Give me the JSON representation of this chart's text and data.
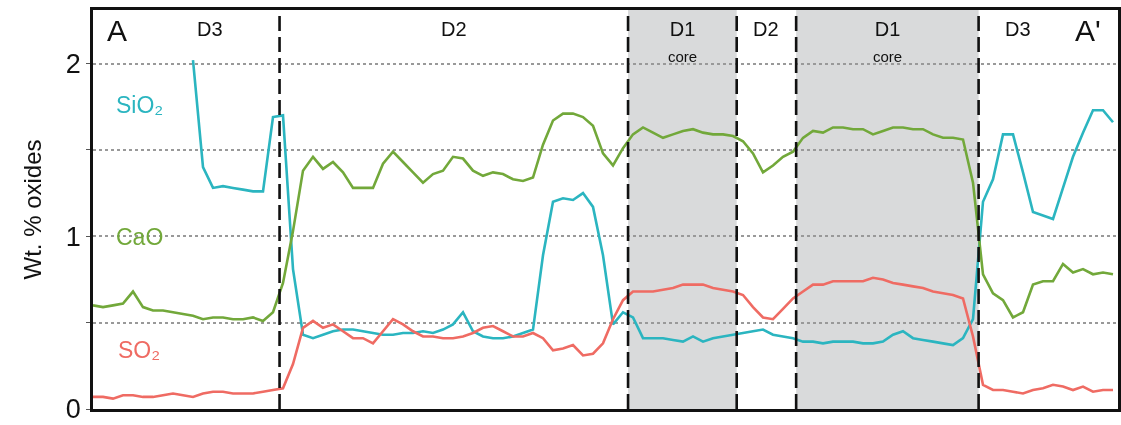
{
  "chart_data": {
    "type": "line",
    "ylabel": "Wt. % oxides",
    "ylim": [
      0,
      2.31
    ],
    "yticks": [
      0,
      {
        "value": 0.5,
        "label": null
      },
      1,
      {
        "value": 1.5,
        "label": null
      },
      2
    ],
    "grid": "y",
    "legend": false,
    "marker": "none",
    "line_style": "solid",
    "tick_labels": "y",
    "categories": [
      null,
      null,
      null,
      null,
      null,
      null,
      null,
      null,
      null,
      null,
      null,
      null,
      null,
      null,
      null,
      null,
      null,
      null,
      null,
      null,
      null,
      null,
      null,
      null,
      null,
      null,
      null,
      null,
      null,
      null,
      null,
      null,
      null,
      null,
      null,
      null,
      null,
      null,
      null,
      null,
      null,
      null,
      null,
      null,
      null,
      null,
      null,
      null,
      null,
      null,
      null,
      null,
      null,
      null,
      null,
      null,
      null,
      null,
      null,
      null,
      null,
      null,
      null,
      null,
      null,
      null,
      null,
      null,
      null,
      null,
      null,
      null,
      null,
      null,
      null,
      null,
      null,
      null,
      null,
      null,
      null,
      null,
      null,
      null,
      null,
      null,
      null,
      null,
      null,
      null,
      null,
      null,
      null,
      null,
      null,
      null,
      null,
      null,
      null,
      null,
      null,
      null,
      null
    ],
    "series": [
      {
        "name": "SiO₂",
        "color": "#2bb5c0",
        "values": [
          null,
          null,
          null,
          null,
          null,
          null,
          null,
          null,
          null,
          null,
          2.02,
          1.4,
          1.28,
          1.29,
          1.28,
          1.27,
          1.26,
          1.26,
          1.69,
          1.7,
          0.81,
          0.43,
          0.41,
          0.43,
          0.45,
          0.46,
          0.46,
          0.45,
          0.44,
          0.43,
          0.43,
          0.44,
          0.44,
          0.45,
          0.44,
          0.46,
          0.49,
          0.56,
          0.45,
          0.42,
          0.41,
          0.41,
          0.42,
          0.44,
          0.46,
          0.89,
          1.2,
          1.22,
          1.21,
          1.25,
          1.17,
          0.89,
          0.49,
          0.56,
          0.53,
          0.41,
          0.41,
          0.41,
          0.4,
          0.39,
          0.42,
          0.39,
          0.41,
          0.42,
          0.43,
          0.44,
          0.45,
          0.46,
          0.43,
          0.42,
          0.41,
          0.39,
          0.39,
          0.38,
          0.39,
          0.39,
          0.39,
          0.38,
          0.38,
          0.39,
          0.43,
          0.45,
          0.41,
          0.4,
          0.39,
          0.38,
          0.37,
          0.41,
          0.52,
          1.2,
          1.33,
          1.59,
          1.59,
          1.37,
          1.14,
          1.12,
          1.1,
          1.28,
          1.46,
          1.6,
          1.73,
          1.73,
          1.66
        ]
      },
      {
        "name": "CaO",
        "color": "#72a83a",
        "values": [
          0.6,
          0.59,
          0.6,
          0.61,
          0.68,
          0.59,
          0.57,
          0.57,
          0.56,
          0.55,
          0.54,
          0.52,
          0.53,
          0.53,
          0.52,
          0.52,
          0.53,
          0.51,
          0.56,
          0.73,
          1.03,
          1.38,
          1.46,
          1.39,
          1.43,
          1.37,
          1.28,
          1.28,
          1.28,
          1.42,
          1.49,
          1.43,
          1.37,
          1.31,
          1.36,
          1.38,
          1.46,
          1.45,
          1.38,
          1.35,
          1.37,
          1.36,
          1.33,
          1.32,
          1.34,
          1.53,
          1.67,
          1.71,
          1.71,
          1.69,
          1.64,
          1.48,
          1.41,
          1.51,
          1.59,
          1.63,
          1.6,
          1.57,
          1.59,
          1.61,
          1.62,
          1.6,
          1.59,
          1.59,
          1.58,
          1.55,
          1.48,
          1.37,
          1.41,
          1.46,
          1.49,
          1.57,
          1.61,
          1.6,
          1.63,
          1.63,
          1.62,
          1.62,
          1.59,
          1.61,
          1.63,
          1.63,
          1.62,
          1.62,
          1.59,
          1.57,
          1.57,
          1.56,
          1.31,
          0.78,
          0.67,
          0.63,
          0.53,
          0.56,
          0.72,
          0.74,
          0.74,
          0.84,
          0.79,
          0.81,
          0.78,
          0.79,
          0.78
        ]
      },
      {
        "name": "SO₂",
        "color": "#ef6b63",
        "values": [
          0.07,
          0.07,
          0.06,
          0.08,
          0.08,
          0.07,
          0.07,
          0.08,
          0.09,
          0.08,
          0.07,
          0.09,
          0.1,
          0.1,
          0.09,
          0.09,
          0.09,
          0.1,
          0.11,
          0.12,
          0.26,
          0.47,
          0.51,
          0.47,
          0.49,
          0.45,
          0.41,
          0.41,
          0.38,
          0.45,
          0.52,
          0.49,
          0.45,
          0.42,
          0.42,
          0.41,
          0.41,
          0.42,
          0.44,
          0.47,
          0.48,
          0.45,
          0.42,
          0.42,
          0.44,
          0.41,
          0.34,
          0.35,
          0.37,
          0.31,
          0.32,
          0.38,
          0.52,
          0.63,
          0.68,
          0.68,
          0.68,
          0.69,
          0.7,
          0.72,
          0.72,
          0.72,
          0.7,
          0.69,
          0.68,
          0.66,
          0.59,
          0.53,
          0.52,
          0.58,
          0.64,
          0.68,
          0.72,
          0.72,
          0.74,
          0.74,
          0.74,
          0.74,
          0.76,
          0.75,
          0.73,
          0.72,
          0.71,
          0.7,
          0.68,
          0.67,
          0.66,
          0.64,
          0.42,
          0.14,
          0.11,
          0.11,
          0.1,
          0.09,
          0.11,
          0.12,
          0.14,
          0.13,
          0.11,
          0.13,
          0.1,
          0.11,
          0.11
        ]
      }
    ],
    "annotations": [
      "A",
      "D3",
      "D2",
      "D1\ncore",
      "D2",
      "D1\ncore",
      "D3",
      "A'"
    ]
  }
}
